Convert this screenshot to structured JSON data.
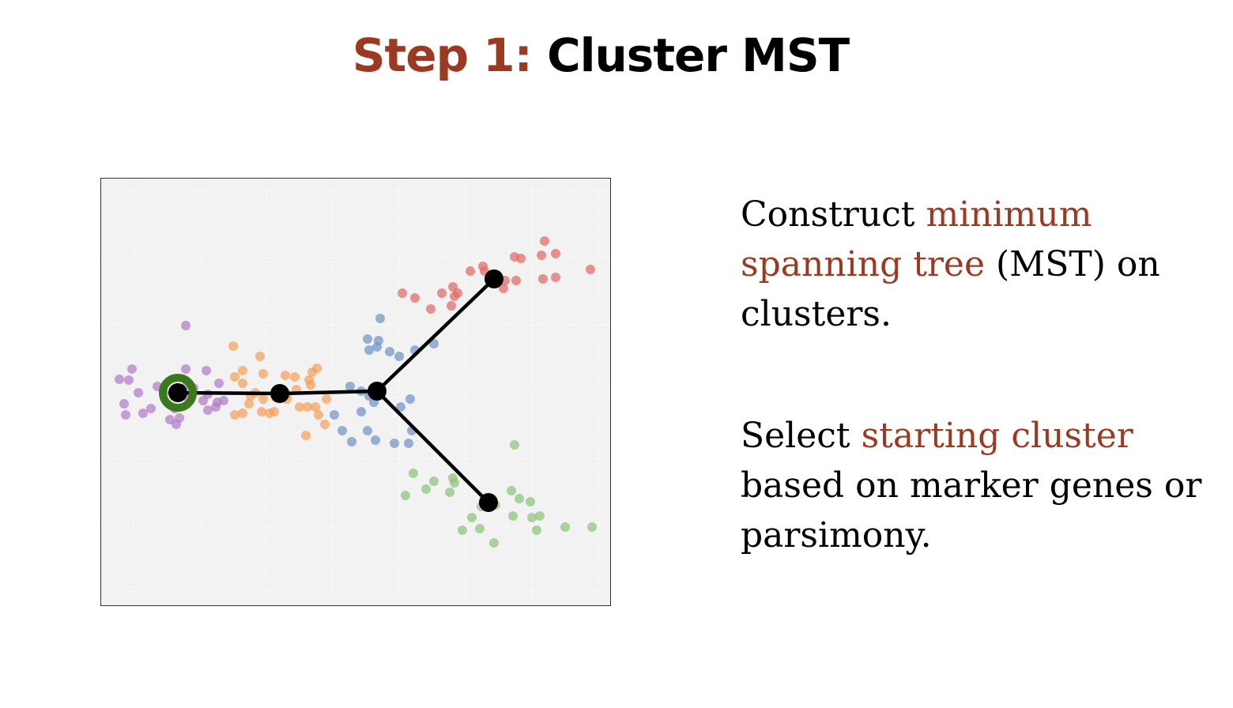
{
  "title": {
    "step": "Step 1:",
    "main": "Cluster MST"
  },
  "description": {
    "p1": {
      "pre": "Construct ",
      "highlight": "minimum spanning tree",
      "post": " (MST) on clusters."
    },
    "p2": {
      "pre": "Select ",
      "highlight": "starting cluster",
      "post": " based on marker genes or parsimony."
    }
  },
  "colors": {
    "highlight": "#9b3a22",
    "purple": "#b07cc6",
    "orange": "#f5a05a",
    "blue": "#6f93c8",
    "red": "#e06a66",
    "green": "#8cc47a",
    "start_ring": "#3a7a1c",
    "panel_bg": "#f2f2f2"
  },
  "chart_data": {
    "type": "scatter",
    "title": "",
    "xlabel": "",
    "ylabel": "",
    "xlim": [
      0,
      646
    ],
    "ylim": [
      0,
      542
    ],
    "grid": true,
    "clusters": [
      {
        "name": "purple",
        "center": [
          98,
          272
        ],
        "points": [
          [
            108,
            187
          ],
          [
            40,
            242
          ],
          [
            24,
            255
          ],
          [
            36,
            256
          ],
          [
            48,
            272
          ],
          [
            30,
            286
          ],
          [
            32,
            300
          ],
          [
            54,
            298
          ],
          [
            64,
            292
          ],
          [
            72,
            264
          ],
          [
            80,
            272
          ],
          [
            108,
            242
          ],
          [
            134,
            244
          ],
          [
            150,
            260
          ],
          [
            148,
            284
          ],
          [
            130,
            282
          ],
          [
            136,
            294
          ],
          [
            146,
            290
          ],
          [
            156,
            282
          ],
          [
            136,
            274
          ],
          [
            118,
            266
          ],
          [
            112,
            280
          ],
          [
            94,
            292
          ],
          [
            100,
            304
          ],
          [
            96,
            312
          ],
          [
            88,
            306
          ],
          [
            110,
            262
          ]
        ]
      },
      {
        "name": "orange",
        "center": [
          227,
          273
        ],
        "points": [
          [
            168,
            213
          ],
          [
            202,
            226
          ],
          [
            170,
            252
          ],
          [
            180,
            244
          ],
          [
            190,
            276
          ],
          [
            180,
            260
          ],
          [
            206,
            248
          ],
          [
            234,
            250
          ],
          [
            246,
            252
          ],
          [
            268,
            246
          ],
          [
            274,
            241
          ],
          [
            264,
            256
          ],
          [
            266,
            262
          ],
          [
            248,
            268
          ],
          [
            236,
            274
          ],
          [
            222,
            278
          ],
          [
            206,
            280
          ],
          [
            196,
            272
          ],
          [
            188,
            286
          ],
          [
            180,
            298
          ],
          [
            170,
            300
          ],
          [
            204,
            296
          ],
          [
            220,
            296
          ],
          [
            236,
            280
          ],
          [
            252,
            290
          ],
          [
            262,
            290
          ],
          [
            272,
            290
          ],
          [
            276,
            300
          ],
          [
            284,
            312
          ],
          [
            286,
            280
          ],
          [
            260,
            326
          ],
          [
            214,
            298
          ]
        ]
      },
      {
        "name": "blue",
        "center": [
          350,
          270
        ],
        "points": [
          [
            354,
            178
          ],
          [
            338,
            204
          ],
          [
            352,
            206
          ],
          [
            340,
            218
          ],
          [
            350,
            214
          ],
          [
            366,
            220
          ],
          [
            378,
            226
          ],
          [
            398,
            218
          ],
          [
            422,
            210
          ],
          [
            316,
            264
          ],
          [
            330,
            270
          ],
          [
            340,
            276
          ],
          [
            346,
            284
          ],
          [
            330,
            296
          ],
          [
            296,
            300
          ],
          [
            306,
            320
          ],
          [
            318,
            334
          ],
          [
            338,
            320
          ],
          [
            348,
            332
          ],
          [
            372,
            336
          ],
          [
            390,
            336
          ],
          [
            394,
            320
          ],
          [
            392,
            280
          ],
          [
            380,
            290
          ]
        ]
      },
      {
        "name": "red",
        "center": [
          498,
          128
        ],
        "points": [
          [
            382,
            146
          ],
          [
            398,
            152
          ],
          [
            418,
            166
          ],
          [
            432,
            146
          ],
          [
            446,
            138
          ],
          [
            452,
            146
          ],
          [
            444,
            162
          ],
          [
            448,
            150
          ],
          [
            468,
            118
          ],
          [
            484,
            112
          ],
          [
            510,
            140
          ],
          [
            512,
            130
          ],
          [
            500,
            134
          ],
          [
            524,
            100
          ],
          [
            532,
            102
          ],
          [
            526,
            130
          ],
          [
            562,
            80
          ],
          [
            558,
            98
          ],
          [
            576,
            96
          ],
          [
            576,
            126
          ],
          [
            560,
            128
          ],
          [
            620,
            116
          ],
          [
            486,
            118
          ]
        ]
      },
      {
        "name": "green",
        "center": [
          491,
          411
        ],
        "points": [
          [
            396,
            374
          ],
          [
            422,
            384
          ],
          [
            442,
            398
          ],
          [
            412,
            394
          ],
          [
            386,
            402
          ],
          [
            446,
            380
          ],
          [
            448,
            386
          ],
          [
            524,
            338
          ],
          [
            520,
            396
          ],
          [
            530,
            406
          ],
          [
            544,
            410
          ],
          [
            556,
            428
          ],
          [
            546,
            430
          ],
          [
            522,
            428
          ],
          [
            482,
            416
          ],
          [
            470,
            430
          ],
          [
            458,
            446
          ],
          [
            480,
            444
          ],
          [
            500,
            414
          ],
          [
            498,
            462
          ],
          [
            552,
            446
          ],
          [
            588,
            442
          ],
          [
            622,
            442
          ]
        ]
      }
    ],
    "mst_edges": [
      [
        "purple",
        "orange"
      ],
      [
        "orange",
        "blue"
      ],
      [
        "blue",
        "red"
      ],
      [
        "blue",
        "green"
      ]
    ],
    "start_cluster": "purple"
  }
}
